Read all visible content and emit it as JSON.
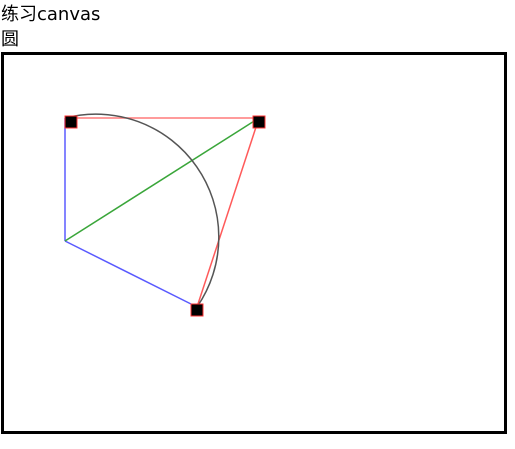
{
  "page": {
    "title": "练习canvas",
    "section_label": "圆"
  },
  "drawing": {
    "colors": {
      "radius_line": "#5a5aff",
      "tangent_line": "#ff5a5a",
      "diagonal_line": "#3aa63a",
      "arc": "#555555",
      "handle_fill": "#000000",
      "handle_stroke": "#ff3333",
      "frame_border": "#000000"
    },
    "shapes": [
      "arc",
      "radius-lines",
      "tangent-lines",
      "diagonal-line",
      "control-point-handles"
    ]
  }
}
